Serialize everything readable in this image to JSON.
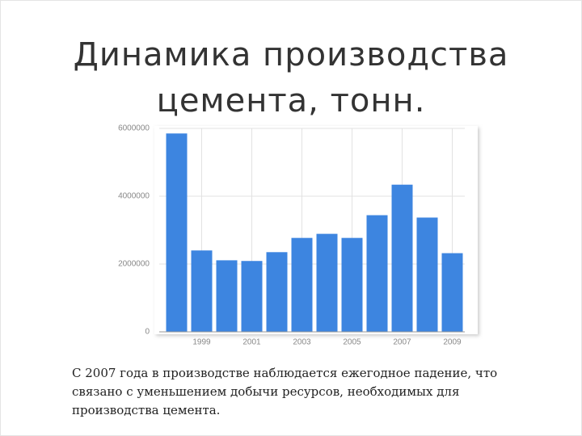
{
  "slide": {
    "title": [
      "Динамика производства",
      "цемента, тонн."
    ],
    "body": [
      "С 2007 года в производстве наблюдается ежегодное падение, что",
      "связано с  уменьшением добычи  ресурсов, необходимых для",
      "производства цемента."
    ]
  },
  "chart_data": {
    "type": "bar",
    "categories": [
      null,
      "1999",
      null,
      "2001",
      null,
      "2003",
      null,
      "2005",
      null,
      "2007",
      null,
      "2009"
    ],
    "values": [
      5850000,
      2400000,
      2110000,
      2090000,
      2350000,
      2770000,
      2890000,
      2770000,
      3440000,
      4340000,
      3370000,
      2320000
    ],
    "color": "#3d85e0",
    "ylim": [
      0,
      6000000
    ],
    "yticks": [
      0,
      2000000,
      4000000,
      6000000
    ],
    "grid": true
  }
}
